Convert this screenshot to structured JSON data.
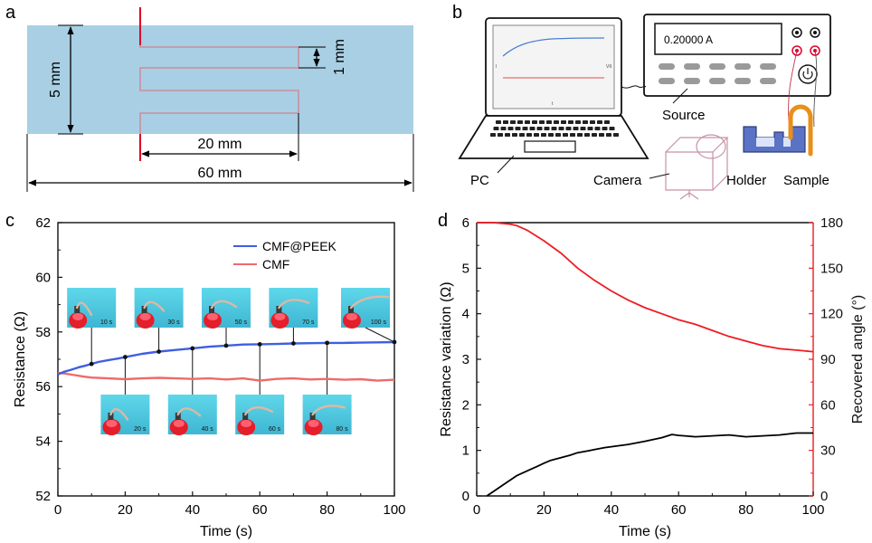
{
  "panels": {
    "a": {
      "label": "a",
      "colors": {
        "film": "#a9cfe4",
        "trace": "#c98f9f",
        "lead": "#e0002a"
      },
      "dims": {
        "height": "5 mm",
        "gap": "1 mm",
        "meander_len": "20 mm",
        "total_len": "60 mm"
      }
    },
    "b": {
      "label": "b",
      "source_display": "0.20000 A",
      "labels": {
        "pc": "PC",
        "source": "Source",
        "camera": "Camera",
        "holder": "Holder",
        "sample": "Sample"
      },
      "screen_ticks": {
        "left": "I",
        "right": "VII",
        "bottom": "t"
      },
      "colors": {
        "holder": "#5b73c4",
        "sample": "#e8901a",
        "camera": "#c891a9",
        "screen_line": "#4a7fd1",
        "screen_ref": "#e34a4a"
      }
    },
    "c": {
      "label": "c"
    },
    "d": {
      "label": "d"
    }
  },
  "chart_data": [
    {
      "panel": "c",
      "type": "line",
      "xlabel": "Time (s)",
      "ylabel": "Resistance (Ω)",
      "xlim": [
        0,
        100
      ],
      "ylim": [
        52,
        62
      ],
      "xticks": [
        "0",
        "20",
        "40",
        "60",
        "80",
        "100"
      ],
      "yticks": [
        "52",
        "54",
        "56",
        "58",
        "60",
        "62"
      ],
      "legend_position": "top-right",
      "series": [
        {
          "name": "CMF@PEEK",
          "color": "#3f5fe0",
          "x": [
            0,
            2,
            4,
            6,
            8,
            10,
            12,
            15,
            18,
            20,
            25,
            30,
            35,
            40,
            45,
            50,
            55,
            60,
            65,
            70,
            75,
            80,
            85,
            90,
            95,
            100
          ],
          "y": [
            56.45,
            56.55,
            56.62,
            56.7,
            56.76,
            56.83,
            56.9,
            56.97,
            57.03,
            57.08,
            57.2,
            57.28,
            57.34,
            57.4,
            57.46,
            57.5,
            57.54,
            57.55,
            57.56,
            57.58,
            57.59,
            57.6,
            57.6,
            57.61,
            57.62,
            57.63
          ]
        },
        {
          "name": "CMF",
          "color": "#ee6a6a",
          "x": [
            0,
            2,
            5,
            8,
            10,
            15,
            20,
            25,
            30,
            35,
            40,
            45,
            50,
            55,
            60,
            65,
            70,
            75,
            80,
            85,
            90,
            95,
            100
          ],
          "y": [
            56.5,
            56.48,
            56.42,
            56.36,
            56.33,
            56.3,
            56.27,
            56.3,
            56.32,
            56.3,
            56.28,
            56.3,
            56.26,
            56.3,
            56.22,
            56.28,
            56.3,
            56.26,
            56.28,
            56.25,
            56.27,
            56.22,
            56.25
          ]
        }
      ],
      "insets": [
        {
          "label": "10 s",
          "x": 10,
          "y": 56.83,
          "row": "top"
        },
        {
          "label": "30 s",
          "x": 30,
          "y": 57.28,
          "row": "top"
        },
        {
          "label": "50 s",
          "x": 50,
          "y": 57.5,
          "row": "top"
        },
        {
          "label": "70 s",
          "x": 70,
          "y": 57.58,
          "row": "top"
        },
        {
          "label": "100 s",
          "x": 100,
          "y": 57.63,
          "row": "top"
        },
        {
          "label": "20 s",
          "x": 20,
          "y": 57.08,
          "row": "bottom"
        },
        {
          "label": "40 s",
          "x": 40,
          "y": 57.4,
          "row": "bottom"
        },
        {
          "label": "60 s",
          "x": 60,
          "y": 57.55,
          "row": "bottom"
        },
        {
          "label": "80 s",
          "x": 80,
          "y": 57.6,
          "row": "bottom"
        }
      ]
    },
    {
      "panel": "d",
      "type": "line",
      "xlabel": "Time (s)",
      "ylabel": "Resistance variation (Ω)",
      "y2label": "Recovered angle (°)",
      "xlim": [
        0,
        100
      ],
      "ylim": [
        0,
        6
      ],
      "y2lim": [
        0,
        180
      ],
      "xticks": [
        "0",
        "20",
        "40",
        "60",
        "80",
        "100"
      ],
      "yticks": [
        "0",
        "1",
        "2",
        "3",
        "4",
        "5",
        "6"
      ],
      "y2ticks": [
        "0",
        "30",
        "60",
        "90",
        "120",
        "150",
        "180"
      ],
      "series": [
        {
          "axis": "left",
          "color": "#000000",
          "x": [
            3,
            5,
            8,
            10,
            12,
            15,
            18,
            20,
            22,
            25,
            28,
            30,
            33,
            35,
            38,
            40,
            45,
            50,
            55,
            58,
            60,
            65,
            70,
            75,
            80,
            85,
            90,
            95,
            100
          ],
          "y": [
            0.0,
            0.1,
            0.25,
            0.35,
            0.45,
            0.55,
            0.65,
            0.72,
            0.78,
            0.84,
            0.9,
            0.95,
            0.99,
            1.02,
            1.06,
            1.08,
            1.13,
            1.2,
            1.28,
            1.35,
            1.33,
            1.3,
            1.32,
            1.34,
            1.3,
            1.32,
            1.34,
            1.38,
            1.38
          ]
        },
        {
          "axis": "right",
          "color": "#ee1c24",
          "x": [
            0,
            5,
            10,
            12,
            15,
            20,
            25,
            30,
            35,
            40,
            45,
            50,
            55,
            60,
            65,
            70,
            75,
            80,
            85,
            90,
            95,
            100
          ],
          "y": [
            180,
            180,
            179,
            178,
            175,
            168,
            160,
            150,
            142,
            135,
            129,
            124,
            120,
            116,
            113,
            109,
            105,
            102,
            99,
            97,
            96,
            95
          ]
        }
      ]
    }
  ]
}
